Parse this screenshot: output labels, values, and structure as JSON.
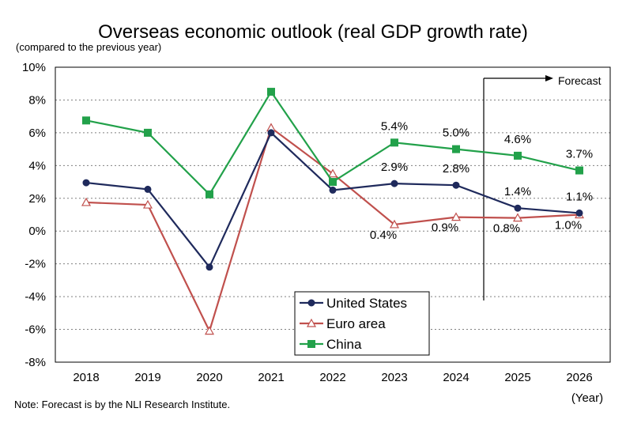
{
  "chart_data": {
    "type": "line",
    "title": "Overseas economic outlook (real GDP growth rate)",
    "subtitle": "(compared to the previous year)",
    "xlabel": "(Year)",
    "ylabel": "",
    "note": "Note: Forecast is by the NLI Research Institute.",
    "forecast_label": "Forecast",
    "categories": [
      "2018",
      "2019",
      "2020",
      "2021",
      "2022",
      "2023",
      "2024",
      "2025",
      "2026"
    ],
    "ylim": [
      -8,
      10
    ],
    "yticks": [
      10,
      8,
      6,
      4,
      2,
      0,
      -2,
      -4,
      -6,
      -8
    ],
    "ytick_labels": [
      "10%",
      "8%",
      "6%",
      "4%",
      "2%",
      "0%",
      "-2%",
      "-4%",
      "-6%",
      "-8%"
    ],
    "grid": "horizontal dashed",
    "legend_position": "bottom-center",
    "series": [
      {
        "name": "United States",
        "color": "#1f2a5c",
        "marker": "circle",
        "values": [
          2.95,
          2.55,
          -2.2,
          6.0,
          2.5,
          2.9,
          2.8,
          1.4,
          1.1
        ]
      },
      {
        "name": "Euro area",
        "color": "#c0504d",
        "marker": "triangle-open",
        "values": [
          1.75,
          1.6,
          -6.1,
          6.3,
          3.5,
          0.4,
          0.85,
          0.8,
          1.0
        ]
      },
      {
        "name": "China",
        "color": "#22a14a",
        "marker": "square",
        "values": [
          6.75,
          6.0,
          2.24,
          8.5,
          3.0,
          5.4,
          5.0,
          4.6,
          3.7
        ]
      }
    ],
    "annotations": [
      {
        "series": "China",
        "index": 5,
        "text": "5.4%",
        "pos": "above"
      },
      {
        "series": "China",
        "index": 6,
        "text": "5.0%",
        "pos": "above"
      },
      {
        "series": "China",
        "index": 7,
        "text": "4.6%",
        "pos": "above"
      },
      {
        "series": "China",
        "index": 8,
        "text": "3.7%",
        "pos": "above"
      },
      {
        "series": "United States",
        "index": 5,
        "text": "2.9%",
        "pos": "above"
      },
      {
        "series": "United States",
        "index": 6,
        "text": "2.8%",
        "pos": "above"
      },
      {
        "series": "United States",
        "index": 7,
        "text": "1.4%",
        "pos": "above"
      },
      {
        "series": "United States",
        "index": 8,
        "text": "1.1%",
        "pos": "above"
      },
      {
        "series": "Euro area",
        "index": 5,
        "text": "0.4%",
        "pos": "below"
      },
      {
        "series": "Euro area",
        "index": 6,
        "text": "0.9%",
        "pos": "below"
      },
      {
        "series": "Euro area",
        "index": 7,
        "text": "0.8%",
        "pos": "below"
      },
      {
        "series": "Euro area",
        "index": 8,
        "text": "1.0%",
        "pos": "below"
      }
    ]
  }
}
